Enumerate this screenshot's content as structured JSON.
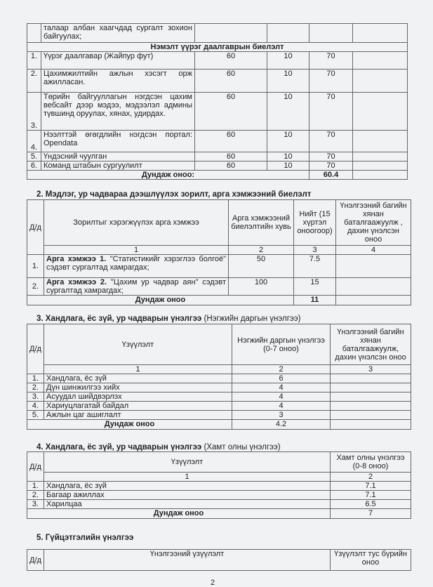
{
  "table1": {
    "rows_top": [
      {
        "num": "",
        "text": "талаар албан хаагчдад сургалт зохион байгуулах;",
        "a": "",
        "b": "",
        "c": "",
        "d": ""
      }
    ],
    "section_header": "Нэмэлт үүрэг даалгаврын биелэлт",
    "rows": [
      {
        "num": "1.",
        "text": "Үүрэг даалгавар (Жайпур фут)",
        "a": "60",
        "b": "10",
        "c": "70",
        "d": ""
      },
      {
        "num": "2.",
        "text": "Цахимжилтийн ажлын хэсэгт орж ажилласан.",
        "a": "60",
        "b": "10",
        "c": "70",
        "d": ""
      },
      {
        "num": "3.",
        "text": "Төрийн байгууллагын нэгдсэн цахим вебсайт дээр мэдээ, мэдээлэл админы түвшинд оруулах, хянах, удирдах.",
        "a": "60",
        "b": "10",
        "c": "70",
        "d": ""
      },
      {
        "num": "4.",
        "text": "Нээлттэй өгөгдлийн нэгдсэн портал: Opendata",
        "a": "60",
        "b": "10",
        "c": "70",
        "d": ""
      },
      {
        "num": "5.",
        "text": "Үндэсний чуулган",
        "a": "60",
        "b": "10",
        "c": "70",
        "d": ""
      },
      {
        "num": "6.",
        "text": "Команд штабын сургуулилт",
        "a": "60",
        "b": "10",
        "c": "70",
        "d": ""
      }
    ],
    "total_label": "Дундаж оноо:",
    "total_value": "60.4"
  },
  "section2": {
    "title": "2.  Мэдлэг, ур чадвараа дээшлүүлэх зорилт, арга хэмжээний биелэлт",
    "headers": [
      "Д/д",
      "Зорилтыг хэрэгжүүлэх арга хэмжээ",
      "Арга хэмжээний биелэлтийн хувь",
      "Нийт (15 хүртэл оноогоор)",
      "Үнэлгээний багийн хянан баталгаажуулж , дахин үнэлсэн оноо"
    ],
    "col_numbers": [
      "1",
      "2",
      "3",
      "4"
    ],
    "rows": [
      {
        "num": "1.",
        "bold": "Арга хэмжээ 1.",
        "text": " \"Статистикийг хэрэглээ болгоё\" сэдэвт сургалтад хамрагдах;",
        "pct": "50",
        "total": "7.5",
        "re": ""
      },
      {
        "num": "2.",
        "bold": "Арга хэмжээ 2.",
        "text": " \"Цахим ур чадвар аян\" сэдэвт сургалтад хамрагдах;",
        "pct": "100",
        "total": "15",
        "re": ""
      }
    ],
    "total_label": "Дундаж оноо",
    "total_value": "11"
  },
  "section3": {
    "title": "3. Хандлага, ёс зүй, ур чадварын үнэлгээ",
    "title_note": "(Нэгжийн даргын үнэлгээ)",
    "headers": [
      "Д/д",
      "Үзүүлэлт",
      "Нэгжийн даргын үнэлгээ (0-7 оноо)",
      "Үнэлгээний багийн хянан баталгаажуулж, дахин үнэлсэн оноо"
    ],
    "col_numbers": [
      "1",
      "2",
      "3"
    ],
    "rows": [
      {
        "num": "1.",
        "text": "Хандлага, ёс зүй",
        "score": "6"
      },
      {
        "num": "2.",
        "text": "Дүн шинжилгээ хийх",
        "score": "4"
      },
      {
        "num": "3.",
        "text": "Асуудал шийдвэрлэх",
        "score": "4"
      },
      {
        "num": "4.",
        "text": "Хариуцлагатай байдал",
        "score": "4"
      },
      {
        "num": "5.",
        "text": "Ажлын цаг ашиглалт",
        "score": "3"
      }
    ],
    "total_label": "Дундаж оноо",
    "total_value": "4.2"
  },
  "section4": {
    "title": "4. Хандлага, ёс зүй, ур чадварын үнэлгээ",
    "title_note": "(Хамт олны үнэлгээ)",
    "headers": [
      "Д/д",
      "Үзүүлэлт",
      "Хамт олны үнэлгээ (0-8 оноо)"
    ],
    "col_numbers": [
      "1",
      "2"
    ],
    "rows": [
      {
        "num": "1.",
        "text": "Хандлага, ёс зүй",
        "score": "7.1"
      },
      {
        "num": "2.",
        "text": "Багаар ажиллах",
        "score": "7.1"
      },
      {
        "num": "3.",
        "text": "Харилцаа",
        "score": "6.5"
      }
    ],
    "total_label": "Дундаж оноо",
    "total_value": "7"
  },
  "section5": {
    "title": "5. Гүйцэтгэлийн үнэлгээ",
    "headers": [
      "Д/д",
      "Үнэлгээний үзүүлэлт",
      "Үзүүлэлт тус бүрийн оноо"
    ]
  },
  "page_number": "2"
}
